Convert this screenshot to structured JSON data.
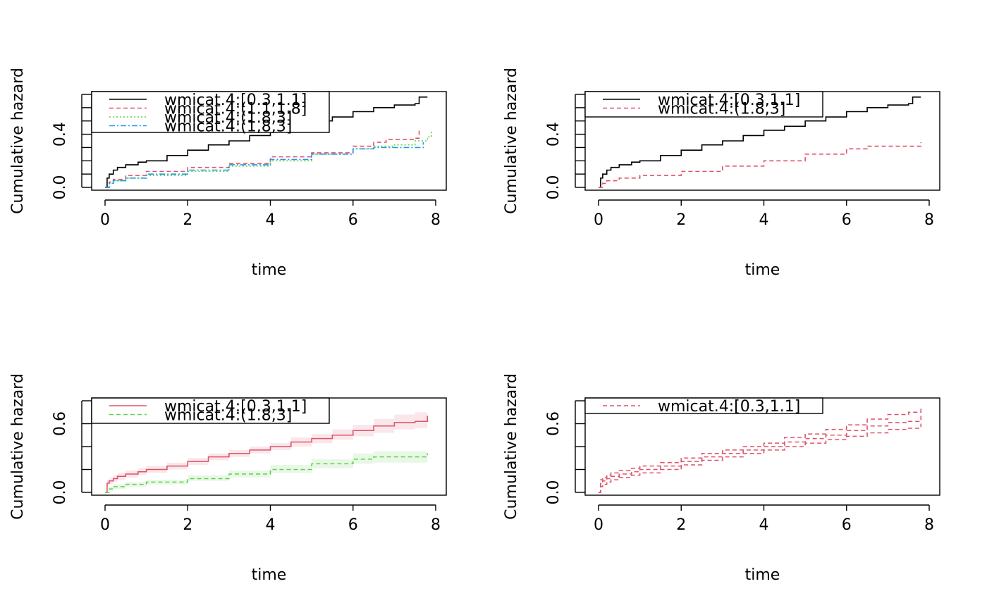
{
  "colors": {
    "black": "#000000",
    "red": "#DF536B",
    "green": "#61D04F",
    "blue": "#2297E6",
    "red_band": "#DF536B",
    "green_band": "#61D04F"
  },
  "chart_data": [
    {
      "type": "line",
      "step": true,
      "xlabel": "time",
      "ylabel": "Cumulative hazard",
      "xlim": [
        0,
        8
      ],
      "ylim": [
        0,
        0.7
      ],
      "xticks": [
        0,
        2,
        4,
        6,
        8
      ],
      "yticks": [
        0,
        0.1,
        0.2,
        0.3,
        0.4,
        0.5,
        0.6,
        0.7
      ],
      "ytick_labels": [
        "0.0",
        "",
        "",
        "",
        "0.4",
        "",
        "",
        ""
      ],
      "legend_position": "top-left",
      "series": [
        {
          "name": "wmicat.4:[0.3,1.1]",
          "color_key": "black",
          "dash": "",
          "x": [
            0,
            0.05,
            0.1,
            0.2,
            0.3,
            0.5,
            0.8,
            1.0,
            1.5,
            2.0,
            2.5,
            3.0,
            3.5,
            4.0,
            4.5,
            5.0,
            5.5,
            6.0,
            6.5,
            7.0,
            7.5,
            7.6,
            7.8
          ],
          "y": [
            0,
            0.07,
            0.1,
            0.13,
            0.15,
            0.17,
            0.19,
            0.2,
            0.24,
            0.28,
            0.32,
            0.35,
            0.39,
            0.43,
            0.46,
            0.5,
            0.53,
            0.57,
            0.6,
            0.62,
            0.63,
            0.68,
            0.68
          ]
        },
        {
          "name": "wmicat.4:(1.1,1.8]",
          "color_key": "red",
          "dash": "6,4",
          "x": [
            0,
            0.1,
            0.2,
            0.5,
            1.0,
            2.0,
            3.0,
            4.0,
            5.0,
            6.0,
            6.5,
            6.8,
            7.5,
            7.6
          ],
          "y": [
            0,
            0.04,
            0.06,
            0.09,
            0.12,
            0.15,
            0.18,
            0.23,
            0.26,
            0.31,
            0.34,
            0.36,
            0.37,
            0.44
          ]
        },
        {
          "name": "wmicat.4:(1.8,3]",
          "color_key": "green",
          "dash": "2,3",
          "x": [
            0,
            0.1,
            0.2,
            0.5,
            1.0,
            2.0,
            3.0,
            4.0,
            5.0,
            6.0,
            6.5,
            7.0,
            7.5,
            7.8,
            7.9
          ],
          "y": [
            0,
            0.03,
            0.05,
            0.07,
            0.09,
            0.12,
            0.16,
            0.2,
            0.25,
            0.29,
            0.31,
            0.32,
            0.35,
            0.38,
            0.42
          ]
        },
        {
          "name": "wmicat.4:(1,8,3]",
          "color_key": "blue",
          "dash": "8,3,2,3",
          "x": [
            0,
            0.1,
            0.2,
            0.5,
            1.0,
            2.0,
            3.0,
            4.0,
            5.0,
            6.0,
            6.5,
            7.0,
            7.5,
            7.7
          ],
          "y": [
            0,
            0.03,
            0.05,
            0.07,
            0.1,
            0.13,
            0.17,
            0.21,
            0.25,
            0.29,
            0.3,
            0.3,
            0.3,
            0.34
          ]
        }
      ]
    },
    {
      "type": "line",
      "step": true,
      "xlabel": "time",
      "ylabel": "Cumulative hazard",
      "xlim": [
        0,
        8
      ],
      "ylim": [
        0,
        0.7
      ],
      "xticks": [
        0,
        2,
        4,
        6,
        8
      ],
      "yticks": [
        0,
        0.1,
        0.2,
        0.3,
        0.4,
        0.5,
        0.6,
        0.7
      ],
      "ytick_labels": [
        "0.0",
        "",
        "",
        "",
        "0.4",
        "",
        "",
        ""
      ],
      "legend_position": "top-left",
      "series": [
        {
          "name": "wmicat.4:[0.3,1.1]",
          "color_key": "black",
          "dash": "",
          "x": [
            0,
            0.05,
            0.1,
            0.2,
            0.3,
            0.5,
            0.8,
            1.0,
            1.5,
            2.0,
            2.5,
            3.0,
            3.5,
            4.0,
            4.5,
            5.0,
            5.5,
            6.0,
            6.5,
            7.0,
            7.5,
            7.6,
            7.8
          ],
          "y": [
            0,
            0.07,
            0.1,
            0.13,
            0.15,
            0.17,
            0.19,
            0.2,
            0.24,
            0.28,
            0.32,
            0.35,
            0.39,
            0.43,
            0.46,
            0.5,
            0.53,
            0.57,
            0.6,
            0.62,
            0.63,
            0.68,
            0.68
          ]
        },
        {
          "name": "wmicat.4:(1.8,3]",
          "color_key": "red",
          "dash": "6,4",
          "x": [
            0,
            0.1,
            0.2,
            0.5,
            1.0,
            2.0,
            3.0,
            4.0,
            5.0,
            6.0,
            6.5,
            7.0,
            7.5,
            7.8
          ],
          "y": [
            0,
            0.03,
            0.05,
            0.07,
            0.09,
            0.12,
            0.16,
            0.2,
            0.25,
            0.29,
            0.31,
            0.31,
            0.31,
            0.34
          ]
        }
      ]
    },
    {
      "type": "line",
      "step": true,
      "xlabel": "time",
      "ylabel": "Cumulative hazard",
      "xlim": [
        0,
        8
      ],
      "ylim": [
        0,
        0.8
      ],
      "xticks": [
        0,
        2,
        4,
        6,
        8
      ],
      "yticks": [
        0,
        0.2,
        0.4,
        0.6,
        0.8
      ],
      "ytick_labels": [
        "0.0",
        "",
        "",
        "0.6",
        ""
      ],
      "legend_position": "top-left",
      "series": [
        {
          "name": "wmicat.4:[0.3,1.1]",
          "color_key": "red",
          "dash": "",
          "band_color_key": "red_band",
          "x": [
            0,
            0.05,
            0.1,
            0.2,
            0.3,
            0.5,
            0.8,
            1.0,
            1.5,
            2.0,
            2.5,
            3.0,
            3.5,
            4.0,
            4.5,
            5.0,
            5.5,
            6.0,
            6.5,
            7.0,
            7.5,
            7.8
          ],
          "y": [
            0,
            0.08,
            0.1,
            0.12,
            0.14,
            0.16,
            0.18,
            0.2,
            0.23,
            0.27,
            0.31,
            0.34,
            0.37,
            0.4,
            0.44,
            0.47,
            0.5,
            0.54,
            0.58,
            0.61,
            0.62,
            0.67
          ],
          "lower": [
            0,
            0.05,
            0.07,
            0.09,
            0.11,
            0.13,
            0.15,
            0.17,
            0.2,
            0.24,
            0.28,
            0.31,
            0.34,
            0.37,
            0.4,
            0.43,
            0.46,
            0.49,
            0.52,
            0.55,
            0.56,
            0.6
          ],
          "upper": [
            0,
            0.11,
            0.13,
            0.15,
            0.17,
            0.19,
            0.21,
            0.23,
            0.26,
            0.3,
            0.34,
            0.37,
            0.4,
            0.43,
            0.48,
            0.51,
            0.55,
            0.59,
            0.64,
            0.68,
            0.7,
            0.75
          ]
        },
        {
          "name": "wmicat.4:(1.8,3]",
          "color_key": "green",
          "dash": "6,4",
          "band_color_key": "green_band",
          "x": [
            0,
            0.1,
            0.2,
            0.5,
            1.0,
            2.0,
            3.0,
            4.0,
            5.0,
            6.0,
            6.5,
            7.0,
            7.5,
            7.8
          ],
          "y": [
            0,
            0.03,
            0.05,
            0.07,
            0.09,
            0.12,
            0.16,
            0.2,
            0.25,
            0.29,
            0.31,
            0.31,
            0.31,
            0.34
          ],
          "lower": [
            0,
            0.01,
            0.03,
            0.05,
            0.07,
            0.1,
            0.13,
            0.17,
            0.21,
            0.25,
            0.26,
            0.26,
            0.26,
            0.28
          ],
          "upper": [
            0,
            0.05,
            0.07,
            0.09,
            0.11,
            0.15,
            0.19,
            0.24,
            0.29,
            0.34,
            0.36,
            0.36,
            0.36,
            0.41
          ]
        }
      ]
    },
    {
      "type": "line",
      "step": true,
      "xlabel": "time",
      "ylabel": "Cumulative hazard",
      "xlim": [
        0,
        8
      ],
      "ylim": [
        0,
        0.8
      ],
      "xticks": [
        0,
        2,
        4,
        6,
        8
      ],
      "yticks": [
        0,
        0.2,
        0.4,
        0.6,
        0.8
      ],
      "ytick_labels": [
        "0.0",
        "",
        "",
        "0.6",
        ""
      ],
      "legend_position": "top-left",
      "series": [
        {
          "name": "wmicat.4:[0.3,1.1]",
          "color_key": "red",
          "dash": "6,4",
          "x": [
            0,
            0.05,
            0.1,
            0.2,
            0.3,
            0.5,
            0.8,
            1.0,
            1.5,
            2.0,
            2.5,
            3.0,
            3.5,
            4.0,
            4.5,
            5.0,
            5.5,
            6.0,
            6.5,
            7.0,
            7.5,
            7.8
          ],
          "y": [
            0,
            0.08,
            0.1,
            0.12,
            0.14,
            0.16,
            0.18,
            0.2,
            0.23,
            0.27,
            0.31,
            0.34,
            0.37,
            0.4,
            0.44,
            0.47,
            0.5,
            0.54,
            0.58,
            0.61,
            0.62,
            0.67
          ]
        },
        {
          "dash": "6,4",
          "color_key": "red",
          "legend": false,
          "x": [
            0,
            0.05,
            0.1,
            0.2,
            0.3,
            0.5,
            0.8,
            1.0,
            1.5,
            2.0,
            2.5,
            3.0,
            3.5,
            4.0,
            4.5,
            5.0,
            5.5,
            6.0,
            6.5,
            7.0,
            7.5,
            7.8
          ],
          "y": [
            0,
            0.05,
            0.07,
            0.09,
            0.11,
            0.13,
            0.15,
            0.17,
            0.2,
            0.24,
            0.28,
            0.31,
            0.34,
            0.37,
            0.4,
            0.43,
            0.46,
            0.49,
            0.52,
            0.55,
            0.56,
            0.6
          ]
        },
        {
          "dash": "6,4",
          "color_key": "red",
          "legend": false,
          "x": [
            0,
            0.05,
            0.1,
            0.2,
            0.3,
            0.5,
            0.8,
            1.0,
            1.5,
            2.0,
            2.5,
            3.0,
            3.5,
            4.0,
            4.5,
            5.0,
            5.5,
            6.0,
            6.5,
            7.0,
            7.5,
            7.8
          ],
          "y": [
            0,
            0.11,
            0.13,
            0.15,
            0.17,
            0.19,
            0.21,
            0.23,
            0.26,
            0.3,
            0.34,
            0.37,
            0.4,
            0.43,
            0.48,
            0.51,
            0.55,
            0.59,
            0.64,
            0.68,
            0.7,
            0.75
          ]
        }
      ]
    }
  ]
}
